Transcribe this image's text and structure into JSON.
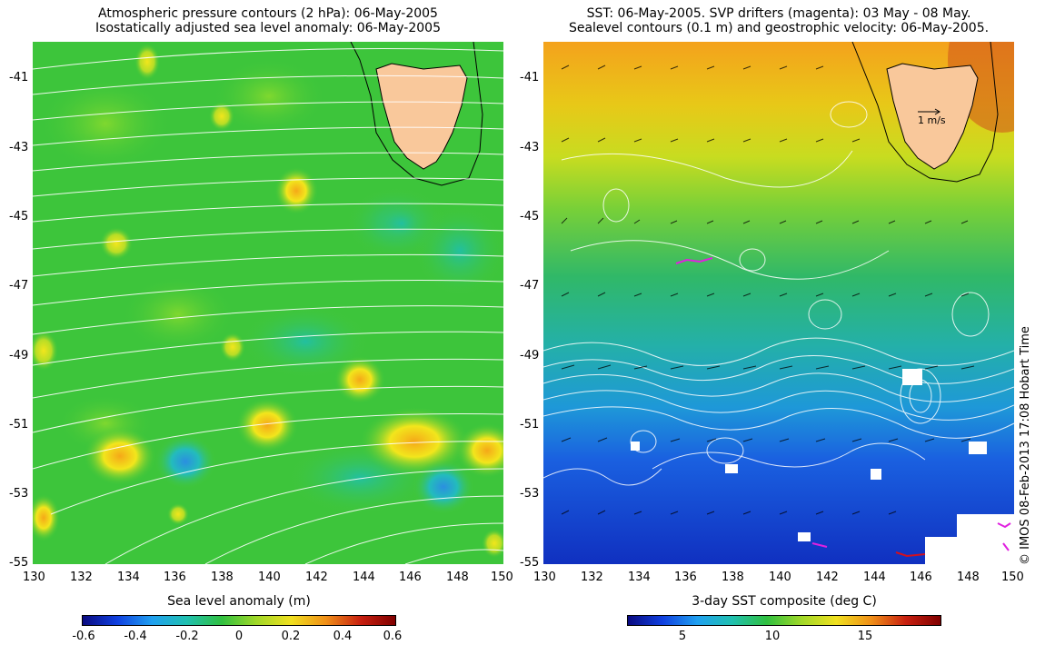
{
  "left_panel": {
    "title_line1": "Atmospheric pressure contours (2 hPa): 06-May-2005",
    "title_line2": "Isostatically adjusted sea level anomaly: 06-May-2005",
    "y_ticks": [
      "-41",
      "-43",
      "-45",
      "-47",
      "-49",
      "-51",
      "-53",
      "-55"
    ],
    "x_ticks": [
      "130",
      "132",
      "134",
      "136",
      "138",
      "140",
      "142",
      "144",
      "146",
      "148",
      "150"
    ],
    "colorbar": {
      "title": "Sea level anomaly (m)",
      "ticks": [
        "-0.6",
        "-0.4",
        "-0.2",
        "0",
        "0.2",
        "0.4",
        "0.6"
      ]
    }
  },
  "right_panel": {
    "title_line1": "SST: 06-May-2005. SVP drifters (magenta): 03 May - 08 May.",
    "title_line2": "Sealevel contours (0.1 m) and geostrophic velocity: 06-May-2005.",
    "y_ticks": [
      "-41",
      "-43",
      "-45",
      "-47",
      "-49",
      "-51",
      "-53",
      "-55"
    ],
    "x_ticks": [
      "130",
      "132",
      "134",
      "136",
      "138",
      "140",
      "142",
      "144",
      "146",
      "148",
      "150"
    ],
    "velocity_scale_label": "1 m/s",
    "colorbar": {
      "title": "3-day SST composite (deg C)",
      "ticks": [
        "5",
        "10",
        "15"
      ]
    }
  },
  "credit": "© IMOS 08-Feb-2013 17:08 Hobart Time",
  "colors": {
    "land": "#f9c89b",
    "sla_background": "#33c440",
    "sst_warm": "#f0a020",
    "sst_cold": "#0f3fd0",
    "contour": "#ffffff",
    "drifter": "#e020e0"
  }
}
